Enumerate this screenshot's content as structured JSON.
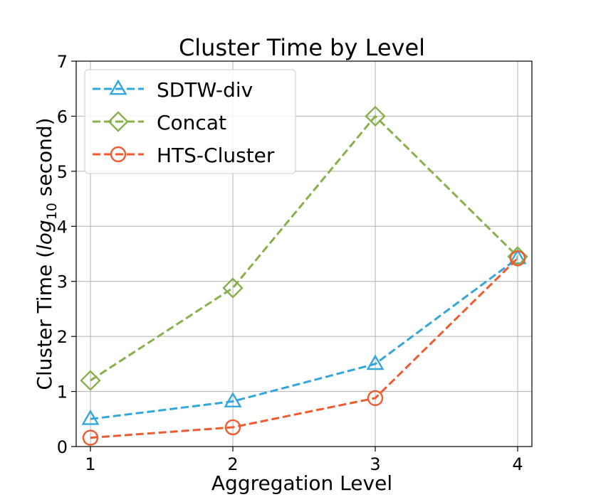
{
  "chart_data": {
    "type": "line",
    "title": "Cluster Time by Level",
    "xlabel": "Aggregation Level",
    "ylabel": {
      "prefix": "Cluster Time (",
      "log": "log",
      "sub": "10",
      "suffix": " second)"
    },
    "x": [
      1,
      2,
      3,
      4
    ],
    "xlim": [
      0.9,
      4.1
    ],
    "ylim": [
      0,
      7
    ],
    "xticks": [
      "1",
      "2",
      "3",
      "4"
    ],
    "yticks": [
      "0",
      "1",
      "2",
      "3",
      "4",
      "5",
      "6",
      "7"
    ],
    "grid": true,
    "legend": "top-left",
    "series": [
      {
        "name": "SDTW-div",
        "values": [
          0.5,
          0.82,
          1.5,
          3.42
        ],
        "color": "#33a7dc",
        "marker": "triangle"
      },
      {
        "name": "Concat",
        "values": [
          1.2,
          2.88,
          6.0,
          3.45
        ],
        "color": "#88b04b",
        "marker": "diamond"
      },
      {
        "name": "HTS-Cluster",
        "values": [
          0.16,
          0.35,
          0.88,
          3.42
        ],
        "color": "#ef5b2f",
        "marker": "circle"
      }
    ]
  }
}
